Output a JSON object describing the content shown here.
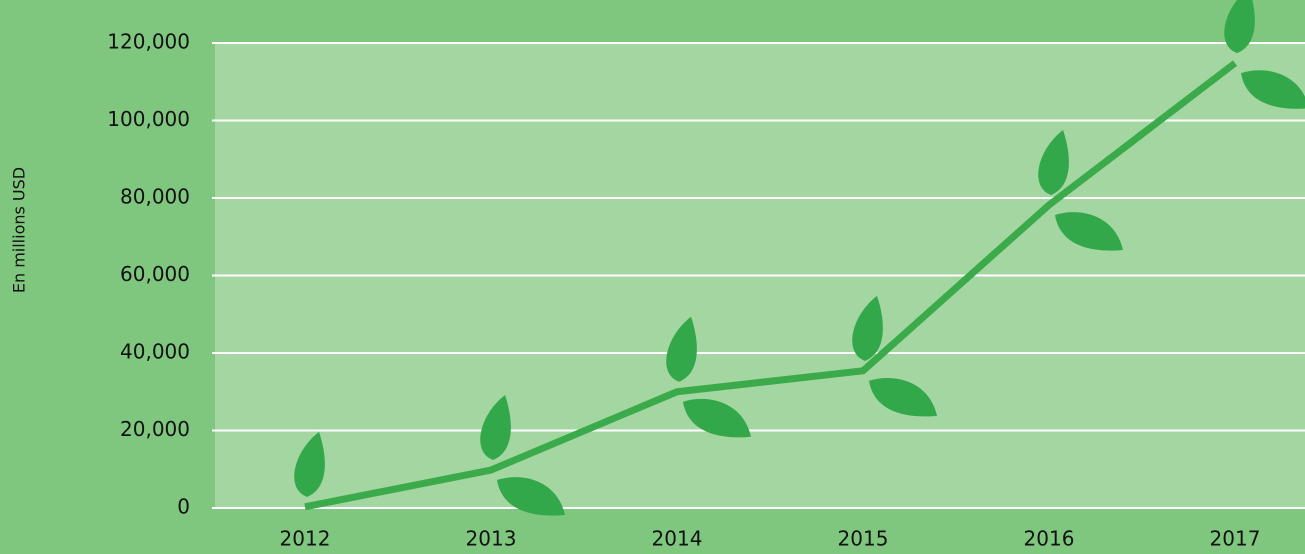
{
  "chart_data": {
    "type": "line",
    "y_label": "En millions USD",
    "categories": [
      "2012",
      "2013",
      "2014",
      "2015",
      "2016",
      "2017"
    ],
    "values": [
      300,
      9800,
      30000,
      35400,
      78200,
      114800
    ],
    "color": "#3aaa4a",
    "ylim": [
      0,
      120000
    ],
    "yticks": [
      0,
      {
        "value": 20000,
        "label": "20,000"
      },
      {
        "value": 40000,
        "label": "40,000"
      },
      {
        "value": 60000,
        "label": "60,000"
      },
      {
        "value": 80000,
        "label": "80,000"
      },
      {
        "value": 100000,
        "label": "100,000"
      },
      {
        "value": 120000,
        "label": "120,000"
      }
    ],
    "grid": true
  }
}
